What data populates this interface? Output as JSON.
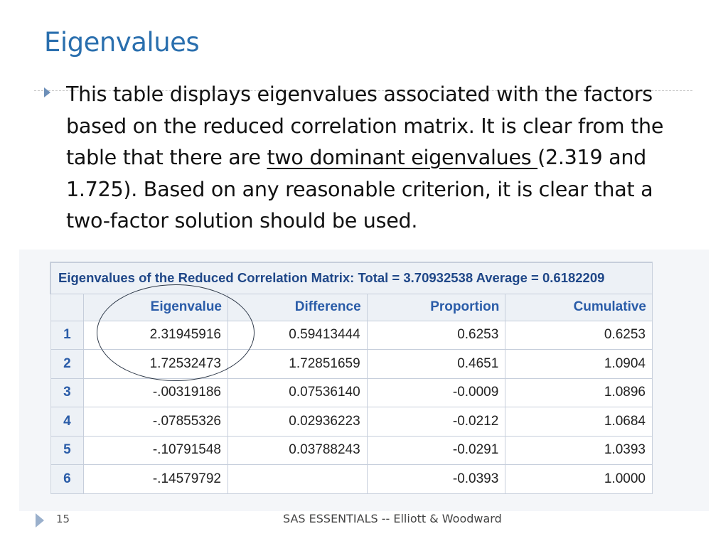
{
  "slide": {
    "title": "Eigenvalues",
    "body": {
      "before_underline": "This table displays eigenvalues associated with the factors based on the reduced correlation matrix. It is clear from the table that there are ",
      "underlined": "two dominant eigenvalues ",
      "after_underline": "(2.319 and 1.725). Based on any reasonable criterion, it is clear that a two-factor solution should be used."
    }
  },
  "table": {
    "caption": "Eigenvalues of the Reduced Correlation Matrix: Total = 3.70932538 Average = 0.6182209",
    "columns": [
      "Eigenvalue",
      "Difference",
      "Proportion",
      "Cumulative"
    ],
    "rows": [
      {
        "label": "1",
        "eigenvalue": "2.31945916",
        "difference": "0.59413444",
        "proportion": "0.6253",
        "cumulative": "0.6253"
      },
      {
        "label": "2",
        "eigenvalue": "1.72532473",
        "difference": "1.72851659",
        "proportion": "0.4651",
        "cumulative": "1.0904"
      },
      {
        "label": "3",
        "eigenvalue": "-.00319186",
        "difference": "0.07536140",
        "proportion": "-0.0009",
        "cumulative": "1.0896"
      },
      {
        "label": "4",
        "eigenvalue": "-.07855326",
        "difference": "0.02936223",
        "proportion": "-0.0212",
        "cumulative": "1.0684"
      },
      {
        "label": "5",
        "eigenvalue": "-.10791548",
        "difference": "0.03788243",
        "proportion": "-0.0291",
        "cumulative": "1.0393"
      },
      {
        "label": "6",
        "eigenvalue": "-.14579792",
        "difference": "",
        "proportion": "-0.0393",
        "cumulative": "1.0000"
      }
    ]
  },
  "footer": {
    "page_number": "15",
    "text": "SAS ESSENTIALS -- Elliott & Woodward"
  },
  "colors": {
    "title": "#2a6fae",
    "table_header_text": "#2a5ca8",
    "caption_text": "#1f4788"
  },
  "icons": {
    "bullet": "triangle-right-icon",
    "footer_arrow": "triangle-right-icon"
  }
}
